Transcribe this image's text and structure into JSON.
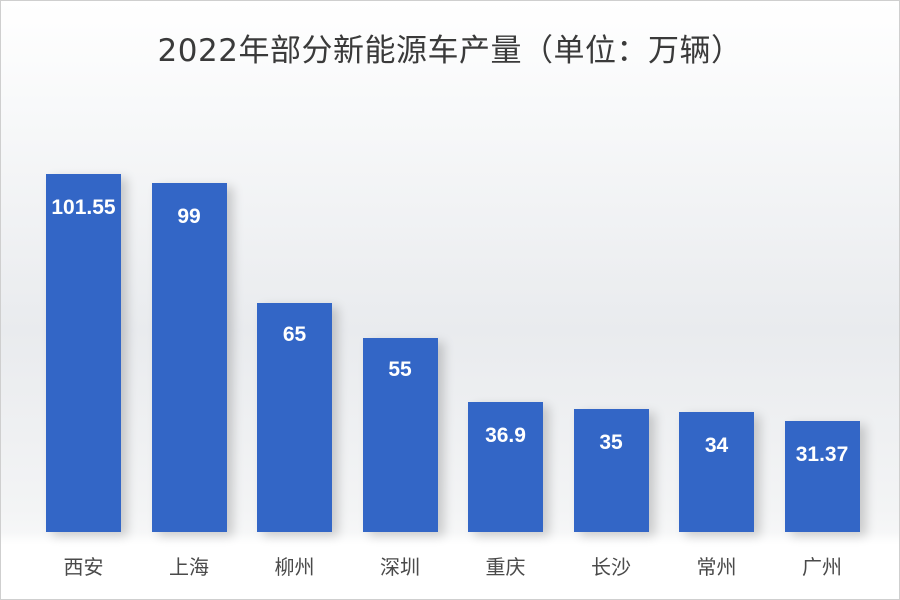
{
  "chart_data": {
    "type": "bar",
    "title": "2022年部分新能源车产量（单位：万辆）",
    "categories": [
      "西安",
      "上海",
      "柳州",
      "深圳",
      "重庆",
      "长沙",
      "常州",
      "广州"
    ],
    "values": [
      101.55,
      99,
      65,
      55,
      36.9,
      35,
      34,
      31.37
    ],
    "value_labels": [
      "101.55",
      "99",
      "65",
      "55",
      "36.9",
      "35",
      "34",
      "31.37"
    ],
    "xlabel": "",
    "ylabel": "万辆",
    "ylim": [
      0,
      105
    ],
    "grid": false,
    "legend": "none",
    "bar_color": "#3366c6"
  }
}
